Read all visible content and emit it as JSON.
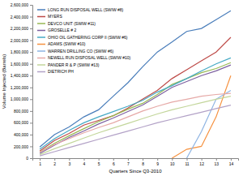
{
  "chart_data": {
    "type": "line",
    "x_label": "Quarters Since Q3-2010",
    "y_label": "Volume Injected (Barrels)",
    "categories": [
      "1",
      "2",
      "3",
      "4",
      "5",
      "6",
      "7",
      "8",
      "9",
      "10",
      "11",
      "12",
      "13",
      "14"
    ],
    "ylim": [
      0,
      2600000
    ],
    "yticks": [
      0,
      {
        "value": 200000,
        "label": "200,000"
      },
      {
        "value": 400000,
        "label": "400,000"
      },
      {
        "value": 600000,
        "label": "600,000"
      },
      {
        "value": 800000,
        "label": "800,000"
      },
      {
        "value": 1000000,
        "label": "1,000,000"
      },
      {
        "value": 1200000,
        "label": "1,200,000"
      },
      {
        "value": 1400000,
        "label": "1,400,000"
      },
      {
        "value": 1600000,
        "label": "1,600,000"
      },
      {
        "value": 1800000,
        "label": "1,800,000"
      },
      {
        "value": 2000000,
        "label": "2,000,000"
      },
      {
        "value": 2200000,
        "label": "2,200,000"
      },
      {
        "value": 2400000,
        "label": "2,400,000"
      },
      {
        "value": 2600000,
        "label": "2,600,000"
      }
    ],
    "grid": false,
    "legend": "upper left",
    "series": [
      {
        "name": "LONG RUN DISPOSAL WELL (SWIW #8)",
        "color": "#4a7ebb",
        "values": [
          190000,
          400000,
          530000,
          700000,
          820000,
          1050000,
          1280000,
          1550000,
          1800000,
          1970000,
          2150000,
          2200000,
          2350000,
          2500000
        ]
      },
      {
        "name": "MYERS",
        "color": "#be4b48",
        "values": [
          120000,
          300000,
          420000,
          560000,
          640000,
          720000,
          850000,
          1000000,
          1150000,
          1350000,
          1500000,
          1650000,
          1800000,
          2050000
        ]
      },
      {
        "name": "DEVCO UNIT (SWIW #11)",
        "color": "#98b954",
        "values": [
          100000,
          250000,
          380000,
          500000,
          620000,
          720000,
          830000,
          930000,
          1080000,
          1250000,
          1350000,
          1450000,
          1520000,
          1620000
        ]
      },
      {
        "name": "GROSELLE # 2",
        "color": "#7d60a0",
        "values": [
          80000,
          220000,
          350000,
          460000,
          580000,
          680000,
          790000,
          900000,
          1050000,
          1200000,
          1300000,
          1400000,
          1480000,
          1580000
        ]
      },
      {
        "name": "OHIO OIL GATHERING CORP II (SWIW #6)",
        "color": "#46aac5",
        "values": [
          150000,
          330000,
          470000,
          600000,
          700000,
          790000,
          880000,
          980000,
          1120000,
          1230000,
          1350000,
          1480000,
          1600000,
          1700000
        ]
      },
      {
        "name": "ADAMS (SWIW #10)",
        "color": "#f69240",
        "values": [
          null,
          null,
          null,
          null,
          null,
          null,
          null,
          null,
          null,
          0,
          150000,
          200000,
          700000,
          1400000
        ]
      },
      {
        "name": "WARREN DRILLING CO (SWIW #6)",
        "color": "#8eb4e3",
        "values": [
          null,
          null,
          null,
          null,
          null,
          null,
          null,
          null,
          null,
          null,
          0,
          450000,
          1000000,
          1150000
        ]
      },
      {
        "name": "NEWELL RUN DISPOSAL WELL (SWIW #10)",
        "color": "#e6a9a7",
        "values": [
          100000,
          230000,
          330000,
          430000,
          520000,
          600000,
          700000,
          800000,
          880000,
          950000,
          1000000,
          1050000,
          1080000,
          1100000
        ]
      },
      {
        "name": "PANDER R & P (SWIW #13)",
        "color": "#c3d69b",
        "values": [
          60000,
          160000,
          250000,
          340000,
          430000,
          510000,
          590000,
          670000,
          750000,
          820000,
          880000,
          940000,
          1000000,
          1050000
        ]
      },
      {
        "name": "DIETRICH PH",
        "color": "#b3a2c7",
        "values": [
          40000,
          110000,
          180000,
          250000,
          320000,
          390000,
          460000,
          530000,
          600000,
          660000,
          720000,
          780000,
          840000,
          900000
        ]
      }
    ]
  }
}
